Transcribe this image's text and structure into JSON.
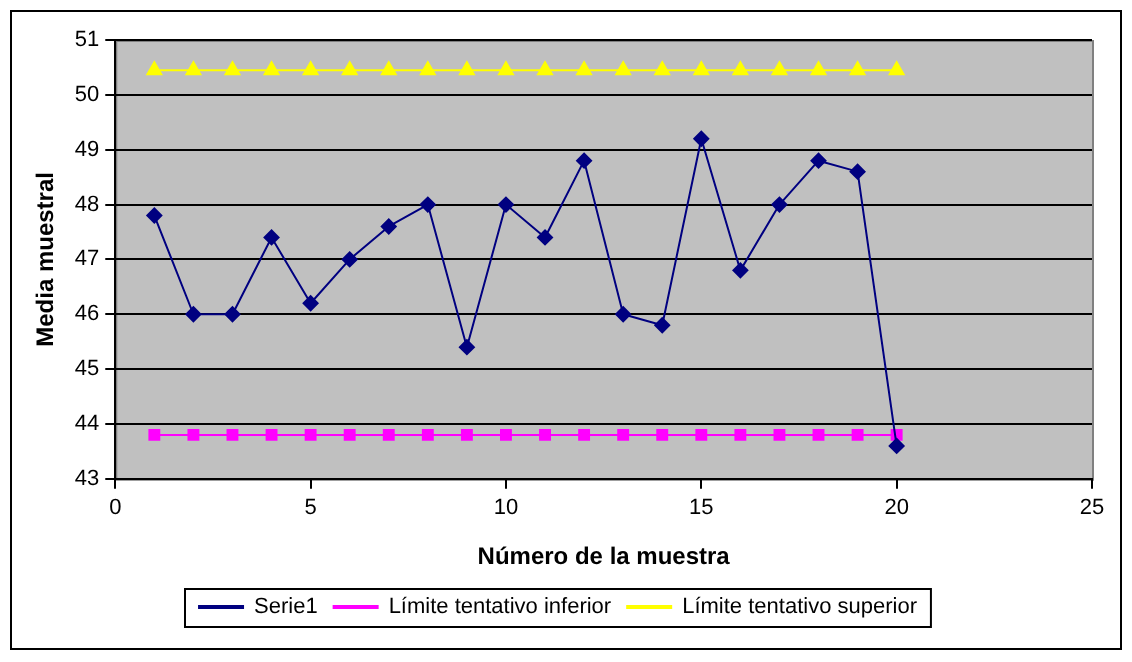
{
  "chart_data": {
    "type": "line",
    "xlabel": "Número de la muestra",
    "ylabel": "Media muestral",
    "x": [
      1,
      2,
      3,
      4,
      5,
      6,
      7,
      8,
      9,
      10,
      11,
      12,
      13,
      14,
      15,
      16,
      17,
      18,
      19,
      20
    ],
    "series": [
      {
        "name": "Serie1",
        "color": "#000080",
        "marker": "diamond",
        "values": [
          47.8,
          46,
          46,
          47.4,
          46.2,
          47,
          47.6,
          48,
          45.4,
          48,
          47.4,
          48.8,
          46,
          45.8,
          49.2,
          46.8,
          48,
          48.8,
          48.6,
          43.6
        ]
      },
      {
        "name": "Límite tentativo inferior",
        "color": "#ff00ff",
        "marker": "square",
        "values": [
          43.8,
          43.8,
          43.8,
          43.8,
          43.8,
          43.8,
          43.8,
          43.8,
          43.8,
          43.8,
          43.8,
          43.8,
          43.8,
          43.8,
          43.8,
          43.8,
          43.8,
          43.8,
          43.8,
          43.8
        ]
      },
      {
        "name": "Límite tentativo superior",
        "color": "#ffff00",
        "marker": "triangle",
        "values": [
          50.45,
          50.45,
          50.45,
          50.45,
          50.45,
          50.45,
          50.45,
          50.45,
          50.45,
          50.45,
          50.45,
          50.45,
          50.45,
          50.45,
          50.45,
          50.45,
          50.45,
          50.45,
          50.45,
          50.45
        ]
      }
    ],
    "xlim": [
      0,
      25
    ],
    "xticks": [
      0,
      5,
      10,
      15,
      20,
      25
    ],
    "ylim": [
      43,
      51
    ],
    "yticks": [
      43,
      44,
      45,
      46,
      47,
      48,
      49,
      50,
      51
    ],
    "grid": "y",
    "legend": "bottom",
    "line_style": "solid"
  }
}
